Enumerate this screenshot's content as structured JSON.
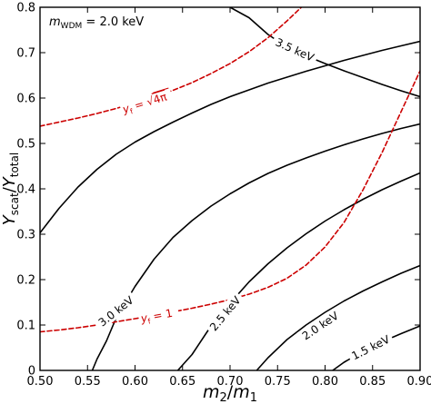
{
  "chart_data": {
    "type": "line",
    "annotation": {
      "symbol": "m",
      "subscript": "WDM",
      "text": " = 2.0 keV"
    },
    "xlabel": {
      "base1": "m",
      "sub1": "2",
      "sep": "/",
      "base2": "m",
      "sub2": "1"
    },
    "ylabel": {
      "base1": "Y",
      "sub1": "scat",
      "sep": "/",
      "base2": "Y",
      "sub2": "total"
    },
    "xlim": [
      0.5,
      0.9
    ],
    "ylim": [
      0.0,
      0.8
    ],
    "x_ticks": [
      "0.50",
      "0.55",
      "0.60",
      "0.65",
      "0.70",
      "0.75",
      "0.80",
      "0.85",
      "0.90"
    ],
    "y_ticks": [
      "0",
      "0.1",
      "0.2",
      "0.3",
      "0.4",
      "0.5",
      "0.6",
      "0.7",
      "0.8"
    ],
    "grid": false,
    "series": [
      {
        "name": "3.5 keV",
        "color": "#000000",
        "style": "solid",
        "label_at": [
          0.768,
          0.706
        ],
        "points": [
          [
            0.7,
            0.8
          ],
          [
            0.72,
            0.777
          ],
          [
            0.74,
            0.74
          ],
          [
            0.76,
            0.712
          ],
          [
            0.78,
            0.693
          ],
          [
            0.8,
            0.676
          ],
          [
            0.82,
            0.66
          ],
          [
            0.84,
            0.645
          ],
          [
            0.86,
            0.63
          ],
          [
            0.88,
            0.616
          ],
          [
            0.9,
            0.603
          ]
        ]
      },
      {
        "name": "3.0 keV",
        "color": "#000000",
        "style": "solid",
        "label_at": [
          0.58,
          0.13
        ],
        "points": [
          [
            0.5,
            0.303
          ],
          [
            0.52,
            0.357
          ],
          [
            0.54,
            0.404
          ],
          [
            0.56,
            0.443
          ],
          [
            0.58,
            0.476
          ],
          [
            0.6,
            0.503
          ],
          [
            0.62,
            0.526
          ],
          [
            0.64,
            0.547
          ],
          [
            0.66,
            0.567
          ],
          [
            0.68,
            0.586
          ],
          [
            0.7,
            0.603
          ],
          [
            0.72,
            0.618
          ],
          [
            0.74,
            0.633
          ],
          [
            0.76,
            0.646
          ],
          [
            0.78,
            0.659
          ],
          [
            0.8,
            0.671
          ],
          [
            0.82,
            0.683
          ],
          [
            0.84,
            0.694
          ],
          [
            0.86,
            0.705
          ],
          [
            0.88,
            0.715
          ],
          [
            0.9,
            0.725
          ]
        ]
      },
      {
        "name": "3.0 keV (lower)",
        "color": "#000000",
        "style": "solid",
        "points": [
          [
            0.555,
            0.0
          ],
          [
            0.56,
            0.025
          ],
          [
            0.57,
            0.065
          ],
          [
            0.58,
            0.115
          ],
          [
            0.6,
            0.185
          ],
          [
            0.62,
            0.245
          ],
          [
            0.64,
            0.293
          ],
          [
            0.66,
            0.33
          ],
          [
            0.68,
            0.362
          ],
          [
            0.7,
            0.389
          ],
          [
            0.72,
            0.413
          ],
          [
            0.74,
            0.434
          ],
          [
            0.76,
            0.452
          ],
          [
            0.78,
            0.468
          ],
          [
            0.8,
            0.483
          ],
          [
            0.82,
            0.497
          ],
          [
            0.84,
            0.51
          ],
          [
            0.86,
            0.522
          ],
          [
            0.88,
            0.533
          ],
          [
            0.9,
            0.543
          ]
        ]
      },
      {
        "name": "2.5 keV",
        "color": "#000000",
        "style": "solid",
        "label_at": [
          0.695,
          0.125
        ],
        "points": [
          [
            0.645,
            0.0
          ],
          [
            0.66,
            0.035
          ],
          [
            0.68,
            0.098
          ],
          [
            0.7,
            0.148
          ],
          [
            0.72,
            0.195
          ],
          [
            0.74,
            0.235
          ],
          [
            0.76,
            0.27
          ],
          [
            0.78,
            0.301
          ],
          [
            0.8,
            0.329
          ],
          [
            0.82,
            0.354
          ],
          [
            0.84,
            0.377
          ],
          [
            0.86,
            0.398
          ],
          [
            0.88,
            0.417
          ],
          [
            0.9,
            0.435
          ]
        ]
      },
      {
        "name": "2.0 keV",
        "color": "#000000",
        "style": "solid",
        "label_at": [
          0.795,
          0.098
        ],
        "points": [
          [
            0.728,
            0.0
          ],
          [
            0.74,
            0.028
          ],
          [
            0.76,
            0.068
          ],
          [
            0.78,
            0.1
          ],
          [
            0.8,
            0.128
          ],
          [
            0.82,
            0.153
          ],
          [
            0.84,
            0.175
          ],
          [
            0.86,
            0.195
          ],
          [
            0.88,
            0.214
          ],
          [
            0.9,
            0.231
          ]
        ]
      },
      {
        "name": "1.5 keV",
        "color": "#000000",
        "style": "solid",
        "label_at": [
          0.848,
          0.05
        ],
        "points": [
          [
            0.808,
            0.0
          ],
          [
            0.82,
            0.018
          ],
          [
            0.84,
            0.042
          ],
          [
            0.86,
            0.063
          ],
          [
            0.88,
            0.081
          ],
          [
            0.9,
            0.098
          ]
        ]
      },
      {
        "name": "y_f = √4π",
        "label_parts": {
          "base": "y",
          "sub": "f",
          "eq": " = ",
          "root": "4π"
        },
        "color": "#cc0000",
        "style": "dashed",
        "label_at": [
          0.612,
          0.59
        ],
        "points": [
          [
            0.5,
            0.538
          ],
          [
            0.52,
            0.547
          ],
          [
            0.54,
            0.556
          ],
          [
            0.56,
            0.566
          ],
          [
            0.58,
            0.577
          ],
          [
            0.6,
            0.589
          ],
          [
            0.62,
            0.602
          ],
          [
            0.64,
            0.617
          ],
          [
            0.66,
            0.634
          ],
          [
            0.68,
            0.654
          ],
          [
            0.7,
            0.676
          ],
          [
            0.72,
            0.702
          ],
          [
            0.74,
            0.733
          ],
          [
            0.76,
            0.77
          ],
          [
            0.775,
            0.8
          ]
        ]
      },
      {
        "name": "y_f = 1",
        "label_parts": {
          "base": "y",
          "sub": "f",
          "eq": " = 1"
        },
        "color": "#cc0000",
        "style": "dashed",
        "label_at": [
          0.625,
          0.121
        ],
        "points": [
          [
            0.5,
            0.085
          ],
          [
            0.52,
            0.089
          ],
          [
            0.54,
            0.094
          ],
          [
            0.56,
            0.1
          ],
          [
            0.58,
            0.107
          ],
          [
            0.6,
            0.114
          ],
          [
            0.62,
            0.121
          ],
          [
            0.64,
            0.129
          ],
          [
            0.66,
            0.137
          ],
          [
            0.68,
            0.146
          ],
          [
            0.7,
            0.156
          ],
          [
            0.72,
            0.168
          ],
          [
            0.74,
            0.183
          ],
          [
            0.76,
            0.203
          ],
          [
            0.78,
            0.232
          ],
          [
            0.8,
            0.272
          ],
          [
            0.82,
            0.326
          ],
          [
            0.84,
            0.398
          ],
          [
            0.86,
            0.48
          ],
          [
            0.88,
            0.57
          ],
          [
            0.9,
            0.66
          ]
        ]
      }
    ]
  }
}
